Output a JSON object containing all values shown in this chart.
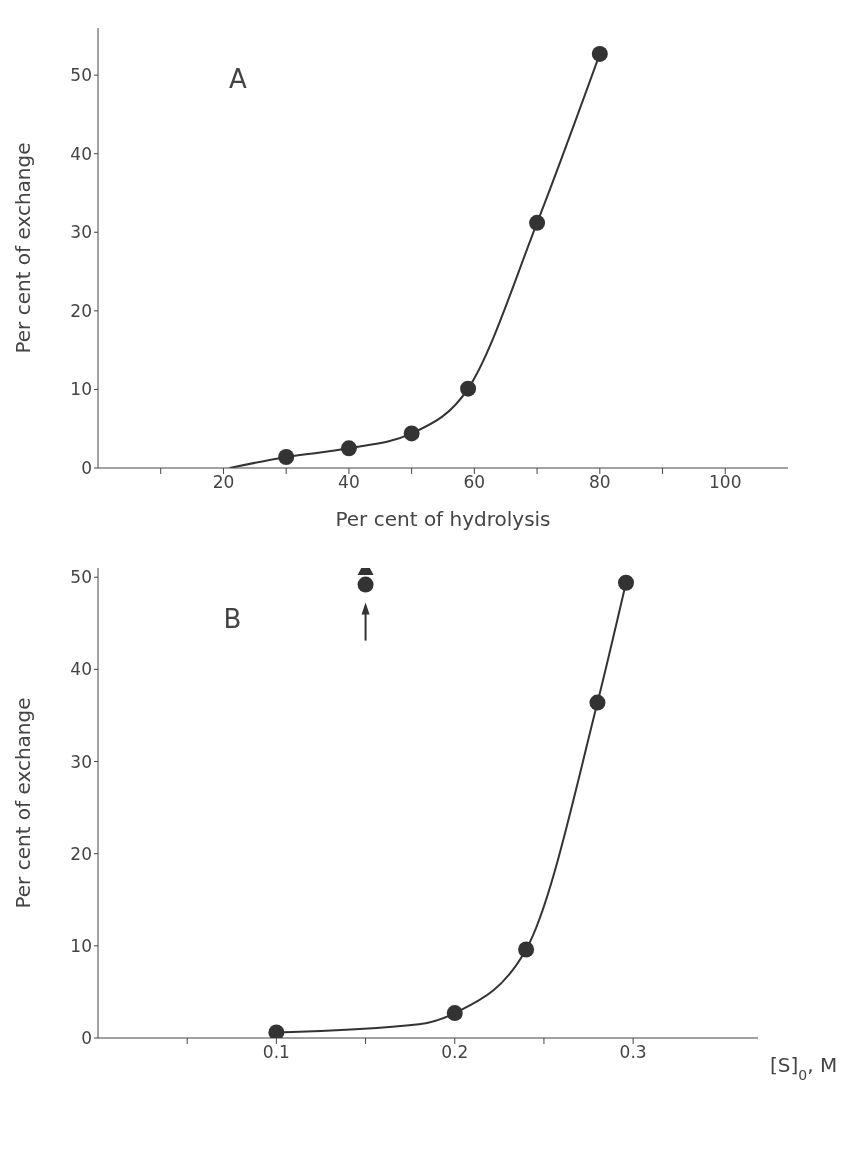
{
  "chart_data": [
    {
      "type": "scatter",
      "xlabel": "Per cent of hydrolysis",
      "ylabel": "Per cent of exchange",
      "annotations": [
        "A"
      ],
      "xlim": [
        0,
        110
      ],
      "xticks": [
        {
          "value": 10,
          "label": null
        },
        20,
        {
          "value": 30,
          "label": null
        },
        40,
        {
          "value": 50,
          "label": null
        },
        60,
        {
          "value": 70,
          "label": null
        },
        80,
        {
          "value": 90,
          "label": null
        },
        100
      ],
      "ylim": [
        0,
        56
      ],
      "yticks": [
        0,
        10,
        20,
        30,
        40,
        50
      ],
      "marker": "circle",
      "series": [
        {
          "type": "line",
          "color": "#333333",
          "x": [
            21,
            30,
            40,
            50,
            59,
            70,
            80
          ],
          "values": [
            0,
            1.4,
            2.5,
            4.4,
            10.1,
            31.2,
            52.7
          ],
          "marker": "none",
          "line_style": "solid"
        },
        {
          "color": "#333333",
          "x": [
            30,
            40,
            50,
            59,
            70,
            80
          ],
          "values": [
            1.4,
            2.5,
            4.4,
            10.1,
            31.2,
            52.7
          ]
        }
      ]
    },
    {
      "type": "scatter",
      "xlabel": "[S]$_{0}$, M",
      "ylabel": "Per cent of exchange",
      "annotations": [
        "B"
      ],
      "xlim": [
        0,
        0.37
      ],
      "xticks": [
        {
          "value": 0.05,
          "label": null
        },
        0.1,
        {
          "value": 0.15,
          "label": null
        },
        0.2,
        {
          "value": 0.25,
          "label": null
        },
        0.3
      ],
      "ylim": [
        0,
        51
      ],
      "yticks": [
        0,
        10,
        20,
        30,
        40,
        50
      ],
      "marker": "circle",
      "series": [
        {
          "type": "line",
          "color": "#333333",
          "x": [
            0.1,
            0.18,
            0.2,
            0.24,
            0.28,
            0.296
          ],
          "values": [
            0.6,
            1.5,
            2.7,
            9.6,
            36.4,
            49.4
          ],
          "marker": "none",
          "line_style": "solid"
        },
        {
          "color": "#333333",
          "x": [
            0.1,
            0.2,
            0.24,
            0.28,
            0.296
          ],
          "values": [
            0.6,
            2.7,
            9.6,
            36.4,
            49.4
          ]
        },
        {
          "color": "#333333",
          "x": [
            0.15
          ],
          "values": [
            49.2
          ]
        },
        {
          "color": "#333333",
          "x": [
            0.15
          ],
          "values": [
            51
          ],
          "marker": "triangle"
        }
      ]
    }
  ]
}
